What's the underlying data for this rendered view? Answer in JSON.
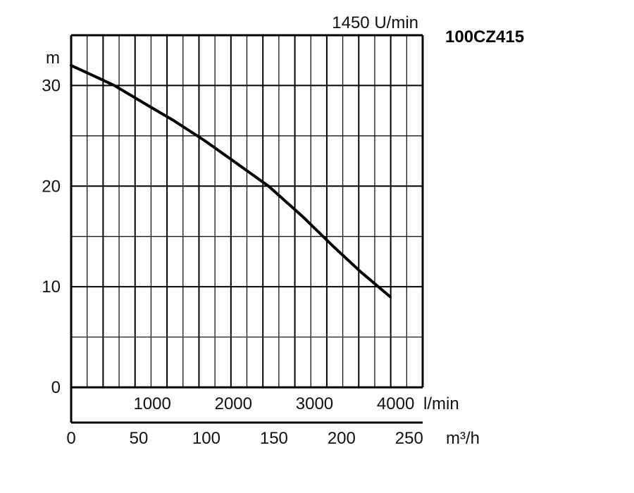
{
  "chart_data": {
    "type": "line",
    "model": "100CZ415",
    "speed_label": "1450 U/min",
    "y_unit": "m",
    "x_unit_lmin": "l/min",
    "x_unit_m3h": "m³/h",
    "ylim": [
      0,
      35
    ],
    "xlim_m3h": [
      0,
      260
    ],
    "grid": true,
    "y_ticks": [
      "0",
      "10",
      "20",
      "30"
    ],
    "lmin_ticks": [
      {
        "label": "1000",
        "value": 1000
      },
      {
        "label": "2000",
        "value": 2000
      },
      {
        "label": "3000",
        "value": 3000
      },
      {
        "label": "4000",
        "value": 4000
      }
    ],
    "m3h_ticks": [
      {
        "label": "0",
        "value": 0
      },
      {
        "label": "50",
        "value": 50
      },
      {
        "label": "100",
        "value": 100
      },
      {
        "label": "150",
        "value": 150
      },
      {
        "label": "200",
        "value": 200
      },
      {
        "label": "250",
        "value": 250
      }
    ],
    "series": [
      {
        "color": "#000000",
        "x": [
          0,
          16,
          32,
          57,
          76,
          99,
          120,
          146,
          171,
          194,
          214,
          236
        ],
        "y": [
          32,
          31,
          30,
          28,
          26.5,
          24.5,
          22.5,
          20,
          17,
          14,
          11.5,
          9
        ]
      }
    ]
  }
}
